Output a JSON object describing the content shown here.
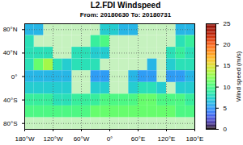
{
  "chart_data": {
    "type": "heatmap",
    "title": "L2.FDI Windspeed",
    "subtitle": "From: 20180630 To: 20180731",
    "x": [
      -180,
      -160,
      -140,
      -120,
      -100,
      -80,
      -60,
      -40,
      -20,
      0,
      20,
      40,
      60,
      80,
      100,
      120,
      140,
      160,
      180
    ],
    "y": [
      90,
      70,
      50,
      30,
      10,
      -10,
      -30,
      -50,
      -70,
      -90
    ],
    "values": [
      [
        6,
        6,
        null,
        null,
        null,
        null,
        null,
        null,
        7,
        7,
        6,
        6,
        null,
        null,
        null,
        null,
        6,
        6
      ],
      [
        8,
        null,
        null,
        null,
        null,
        null,
        null,
        9,
        10,
        null,
        null,
        null,
        null,
        null,
        null,
        null,
        8,
        9
      ],
      [
        8,
        8,
        8,
        null,
        null,
        8,
        8,
        7,
        7,
        null,
        null,
        null,
        null,
        null,
        null,
        8,
        9,
        8
      ],
      [
        8,
        11,
        13,
        8,
        7,
        8,
        8,
        8,
        null,
        null,
        null,
        null,
        null,
        6,
        null,
        7,
        8,
        8
      ],
      [
        6,
        6,
        6,
        6,
        6,
        null,
        null,
        5,
        5,
        null,
        null,
        6,
        5,
        5,
        null,
        5,
        5,
        6
      ],
      [
        7,
        7,
        7,
        7,
        7,
        null,
        null,
        7,
        7,
        null,
        null,
        7,
        8,
        8,
        7,
        null,
        7,
        7
      ],
      [
        9,
        9,
        9,
        8,
        8,
        9,
        9,
        9,
        10,
        10,
        10,
        10,
        11,
        11,
        10,
        10,
        10,
        9
      ],
      [
        10,
        10,
        10,
        10,
        10,
        10,
        10,
        11,
        11,
        11,
        11,
        11,
        11,
        11,
        11,
        11,
        10,
        10
      ],
      [
        null,
        null,
        null,
        null,
        null,
        null,
        null,
        null,
        null,
        null,
        null,
        null,
        null,
        null,
        null,
        null,
        null,
        null
      ]
    ],
    "xlim": [
      -180,
      180
    ],
    "xticks": [
      {
        "value": -180,
        "label": "180°W"
      },
      {
        "value": -120,
        "label": "120°W"
      },
      {
        "value": -60,
        "label": "60°W"
      },
      {
        "value": 0,
        "label": "0°"
      },
      {
        "value": 60,
        "label": "60°E"
      },
      {
        "value": 120,
        "label": "120°E"
      },
      {
        "value": 180,
        "label": "180°E"
      }
    ],
    "ylim": [
      -90,
      90
    ],
    "yticks": [
      {
        "value": -80,
        "label": "80°S"
      },
      {
        "value": -40,
        "label": "40°S"
      },
      {
        "value": 0,
        "label": "0°"
      },
      {
        "value": 40,
        "label": "40°N"
      },
      {
        "value": 80,
        "label": "80°N"
      }
    ],
    "grid": true,
    "colorbar": {
      "label": "Wind speed (m/s)",
      "range": [
        0,
        25
      ],
      "ticks": [
        0,
        5,
        10,
        15,
        20,
        25
      ]
    }
  }
}
